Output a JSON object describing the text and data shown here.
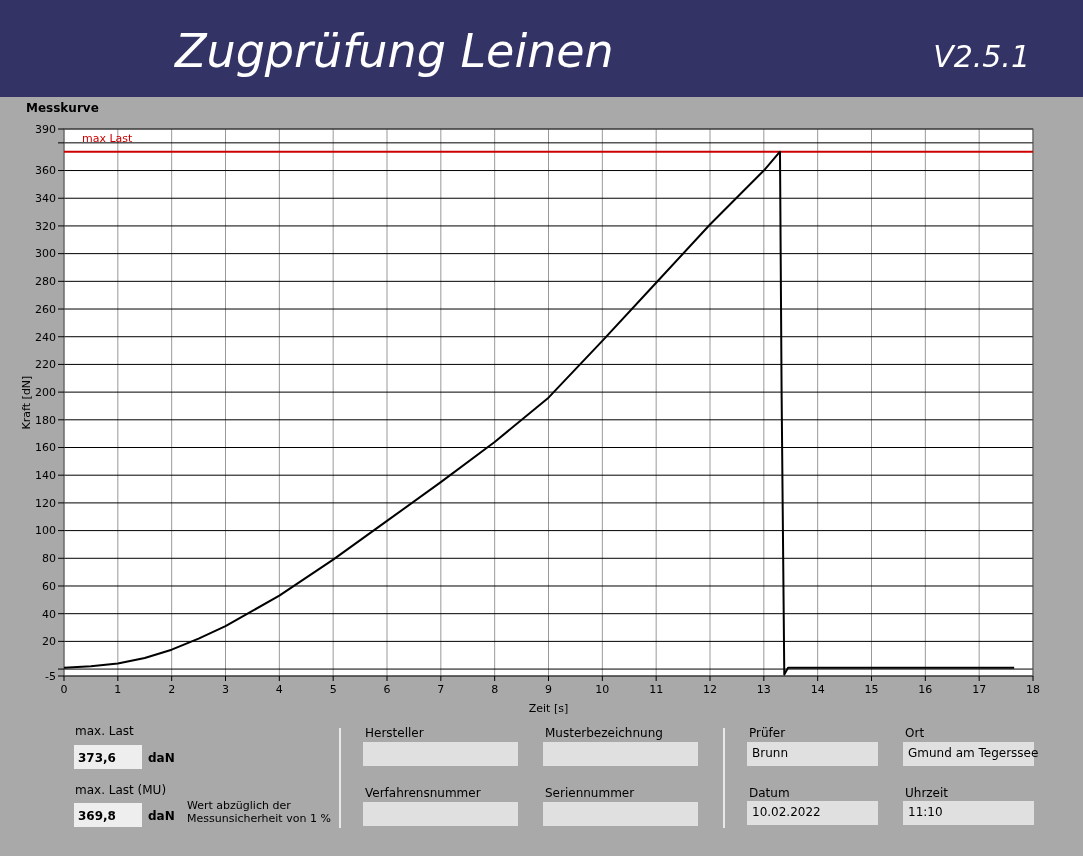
{
  "chart_data": {
    "type": "line",
    "title": "Zugprüfung Leinen",
    "subtitle": "V2.5.1",
    "xlabel": "Zeit [s]",
    "ylabel": "Kraft [dN]",
    "annotations": [
      "Messkurve",
      "max. Last",
      "373,6",
      "daN",
      "max. Last (MU)",
      "369,8",
      "daN",
      "Wert abzüglich der",
      "Messunsicherheit von 1 %",
      "Hersteller",
      "Musterbezeichnung",
      "Verfahrensnummer",
      "Seriennummer",
      "Prüfer",
      "Brunn",
      "Ort",
      "Gmund am Tegerssee",
      "Datum",
      "10.02.2022",
      "Uhrzeit",
      "11:10"
    ],
    "series": [
      {
        "color": "#000000",
        "x": [
          0,
          0.5,
          1,
          1.5,
          2,
          2.5,
          3,
          3.5,
          4,
          4.5,
          5,
          6,
          7,
          8,
          9,
          10,
          11,
          12,
          13,
          13.3,
          13.33,
          13.38,
          13.45,
          14,
          15,
          16,
          17,
          17.65
        ],
        "values": [
          1,
          2,
          4,
          8,
          14,
          22,
          31,
          42,
          53,
          66,
          79,
          107,
          135,
          164,
          196,
          237,
          279,
          321,
          360,
          373.6,
          200,
          -4,
          1,
          1,
          1,
          1,
          1,
          1
        ]
      }
    ],
    "xlim": [
      0,
      18
    ],
    "xticks": [
      0,
      1,
      2,
      3,
      4,
      5,
      6,
      7,
      8,
      9,
      10,
      11,
      12,
      13,
      14,
      15,
      16,
      17,
      18
    ],
    "ylim": [
      -5,
      390
    ],
    "yticks": [
      -5,
      {
        "value": 0,
        "label": null
      },
      20,
      40,
      60,
      80,
      100,
      120,
      140,
      160,
      180,
      200,
      220,
      240,
      260,
      280,
      300,
      320,
      340,
      360,
      {
        "value": 380,
        "label": null
      },
      390
    ],
    "ref_lines": [
      {
        "axis": "y",
        "value": 373.6,
        "label": "max Last",
        "color": "#cc0000"
      }
    ],
    "grid": true,
    "marker": "none",
    "line_style": "solid"
  }
}
